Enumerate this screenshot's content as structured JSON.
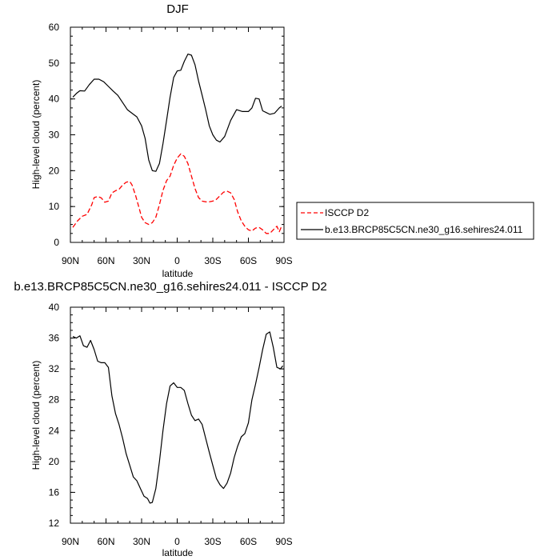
{
  "chart_data": [
    {
      "type": "line",
      "title": "DJF",
      "xlabel": "latitude",
      "ylabel": "High-level cloud (percent)",
      "xlim": [
        90,
        -90
      ],
      "ylim": [
        0,
        60
      ],
      "yticks": [
        0,
        10,
        20,
        30,
        40,
        50,
        60
      ],
      "xticks": [
        {
          "value": 90,
          "label": "90N"
        },
        {
          "value": 60,
          "label": "60N"
        },
        {
          "value": 30,
          "label": "30N"
        },
        {
          "value": 0,
          "label": "0"
        },
        {
          "value": -30,
          "label": "30S"
        },
        {
          "value": -60,
          "label": "60S"
        },
        {
          "value": -90,
          "label": "90S"
        }
      ],
      "legend": "right",
      "series": [
        {
          "name": "ISCCP D2",
          "style": "dashed",
          "color": "#ff0000",
          "x": [
            88,
            84,
            80,
            76,
            72,
            70,
            67,
            64,
            61,
            58,
            55,
            52,
            49,
            46,
            43,
            40,
            38,
            35,
            32,
            30,
            27,
            24,
            21,
            18,
            15,
            12,
            9,
            6,
            3,
            0,
            -3,
            -6,
            -9,
            -12,
            -15,
            -18,
            -21,
            -24,
            -27,
            -30,
            -33,
            -36,
            -39,
            -42,
            -45,
            -48,
            -51,
            -54,
            -57,
            -60,
            -63,
            -66,
            -69,
            -72,
            -75,
            -78,
            -81,
            -84,
            -86,
            -88
          ],
          "values": [
            4.2,
            6,
            7.3,
            7.8,
            10.5,
            12.5,
            12.8,
            12.4,
            11.2,
            11.5,
            13.8,
            14.4,
            14.8,
            16,
            16.8,
            17,
            16,
            13,
            9.5,
            7,
            5.5,
            5,
            5.5,
            7,
            10.5,
            14.5,
            17.2,
            18.5,
            21.5,
            23.5,
            24.7,
            24,
            22,
            18.5,
            15,
            12.5,
            11.5,
            11.3,
            11.3,
            11.5,
            12,
            13,
            14,
            14.3,
            13.8,
            12,
            8.5,
            6,
            4.5,
            3.5,
            3.2,
            4,
            4.2,
            3.5,
            2.5,
            2.5,
            3.5,
            4.5,
            3,
            4.5
          ]
        },
        {
          "name": "b.e13.BRCP85C5CN.ne30_g16.sehires24.011",
          "style": "solid",
          "color": "#000000",
          "x": [
            88,
            85,
            82,
            78,
            74,
            70,
            66,
            62,
            58,
            54,
            50,
            46,
            42,
            38,
            34,
            30,
            27,
            24,
            21,
            18,
            15,
            12,
            9,
            6,
            3,
            0,
            -3,
            -6,
            -9,
            -12,
            -15,
            -18,
            -21,
            -24,
            -27,
            -30,
            -33,
            -36,
            -40,
            -45,
            -50,
            -55,
            -60,
            -63,
            -66,
            -69,
            -72,
            -75,
            -78,
            -82,
            -86,
            -88
          ],
          "values": [
            40.5,
            41.5,
            42.3,
            42.2,
            44,
            45.5,
            45.5,
            44.8,
            43.5,
            42.2,
            41,
            39,
            37,
            36,
            35,
            32.5,
            29,
            23,
            20,
            19.8,
            22,
            27.5,
            34,
            40.5,
            46,
            47.8,
            48,
            50.5,
            52.5,
            52.2,
            49.5,
            45,
            41,
            37,
            32.5,
            30,
            28.5,
            28,
            29.5,
            34,
            37,
            36.5,
            36.5,
            37.5,
            40.2,
            40,
            36.7,
            36.2,
            35.7,
            36,
            37.5,
            38
          ]
        }
      ]
    },
    {
      "type": "line",
      "title": "b.e13.BRCP85C5CN.ne30_g16.sehires24.011 - ISCCP D2",
      "xlabel": "latitude",
      "ylabel": "High-level cloud (percent)",
      "xlim": [
        90,
        -90
      ],
      "ylim": [
        12,
        40
      ],
      "yticks": [
        12,
        16,
        20,
        24,
        28,
        32,
        36,
        40
      ],
      "xticks": [
        {
          "value": 90,
          "label": "90N"
        },
        {
          "value": 60,
          "label": "60N"
        },
        {
          "value": 30,
          "label": "30N"
        },
        {
          "value": 0,
          "label": "0"
        },
        {
          "value": -30,
          "label": "30S"
        },
        {
          "value": -60,
          "label": "60S"
        },
        {
          "value": -90,
          "label": "90S"
        }
      ],
      "series": [
        {
          "style": "solid",
          "color": "#000000",
          "x": [
            88,
            85,
            82,
            79,
            76,
            73,
            70,
            67,
            64,
            61,
            58,
            55,
            52,
            49,
            46,
            43,
            40,
            37,
            34,
            31,
            28,
            25,
            23,
            21,
            18,
            15,
            12,
            9,
            6,
            3,
            0,
            -3,
            -6,
            -9,
            -12,
            -15,
            -18,
            -21,
            -24,
            -27,
            -30,
            -33,
            -36,
            -39,
            -42,
            -45,
            -48,
            -51,
            -54,
            -57,
            -60,
            -63,
            -66,
            -69,
            -72,
            -75,
            -78,
            -81,
            -84,
            -87,
            -89
          ],
          "values": [
            36.2,
            36,
            36.3,
            35,
            34.8,
            35.7,
            34.5,
            33,
            32.8,
            32.8,
            32.2,
            28.5,
            26.2,
            24.8,
            23,
            21,
            19.5,
            18,
            17.5,
            16.5,
            15.5,
            15.2,
            14.6,
            14.7,
            16.5,
            20,
            24,
            27.5,
            29.8,
            30.2,
            29.6,
            29.6,
            29.2,
            27.5,
            26,
            25.3,
            25.5,
            24.8,
            23,
            21.2,
            19.5,
            17.8,
            17,
            16.5,
            17.2,
            18.5,
            20.5,
            22,
            23.2,
            23.6,
            25,
            28,
            30,
            32.2,
            34.5,
            36.5,
            36.8,
            34.8,
            32.2,
            32,
            32.4
          ]
        }
      ]
    }
  ]
}
